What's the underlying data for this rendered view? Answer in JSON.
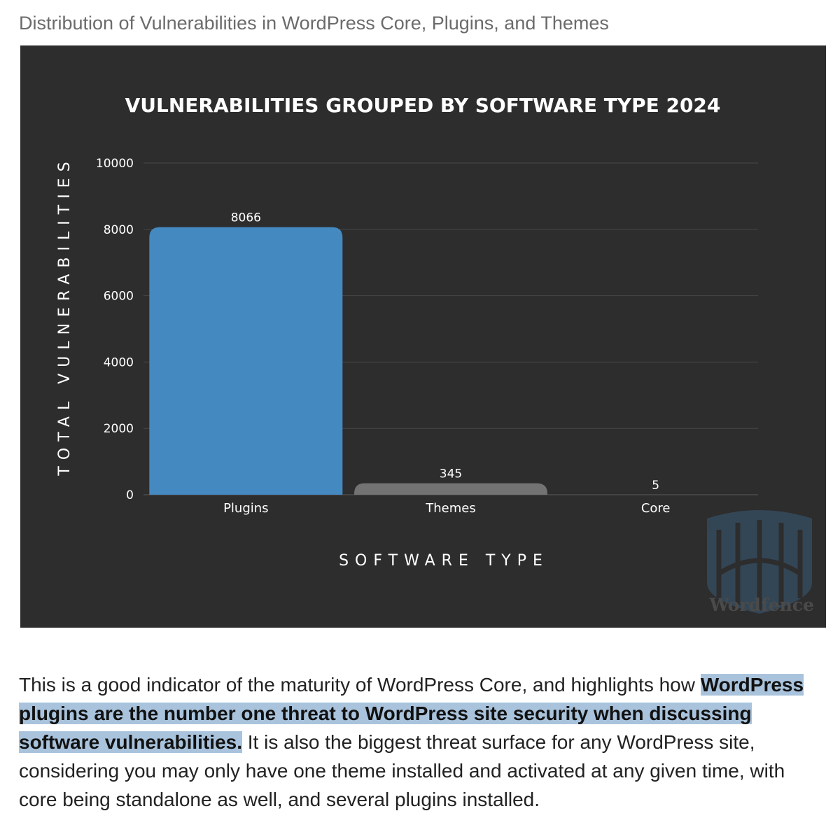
{
  "caption": "Distribution of Vulnerabilities in WordPress Core, Plugins, and Themes",
  "chart_data": {
    "type": "bar",
    "title": "VULNERABILITIES GROUPED BY SOFTWARE TYPE 2024",
    "xlabel": "SOFTWARE TYPE",
    "ylabel": "TOTAL VULNERABILITIES",
    "categories": [
      "Plugins",
      "Themes",
      "Core"
    ],
    "values": [
      8066,
      345,
      5
    ],
    "data_labels": [
      "8066",
      "345",
      "5"
    ],
    "ylim": [
      0,
      10000
    ],
    "yticks": [
      0,
      2000,
      4000,
      6000,
      8000,
      10000
    ],
    "grid": true,
    "legend": "none",
    "colors": {
      "background": "#2d2d2d",
      "bars": [
        "#4589c1",
        "#737373",
        "#737373"
      ],
      "grid": "#474747"
    }
  },
  "watermark": {
    "brand": "Wordfence",
    "icon": "wordfence-gate-shield-icon"
  },
  "paragraph": {
    "part1": "This is a good indicator of the maturity of WordPress Core, and highlights how ",
    "highlight": "WordPress plugins are the number one threat to WordPress site security when discussing software vulnerabilities",
    "period": ".",
    "part2": " It is also the biggest threat surface for any WordPress site, considering you may only have one theme installed and activated at any given time, with core being standalone as well, and several plugins installed."
  }
}
